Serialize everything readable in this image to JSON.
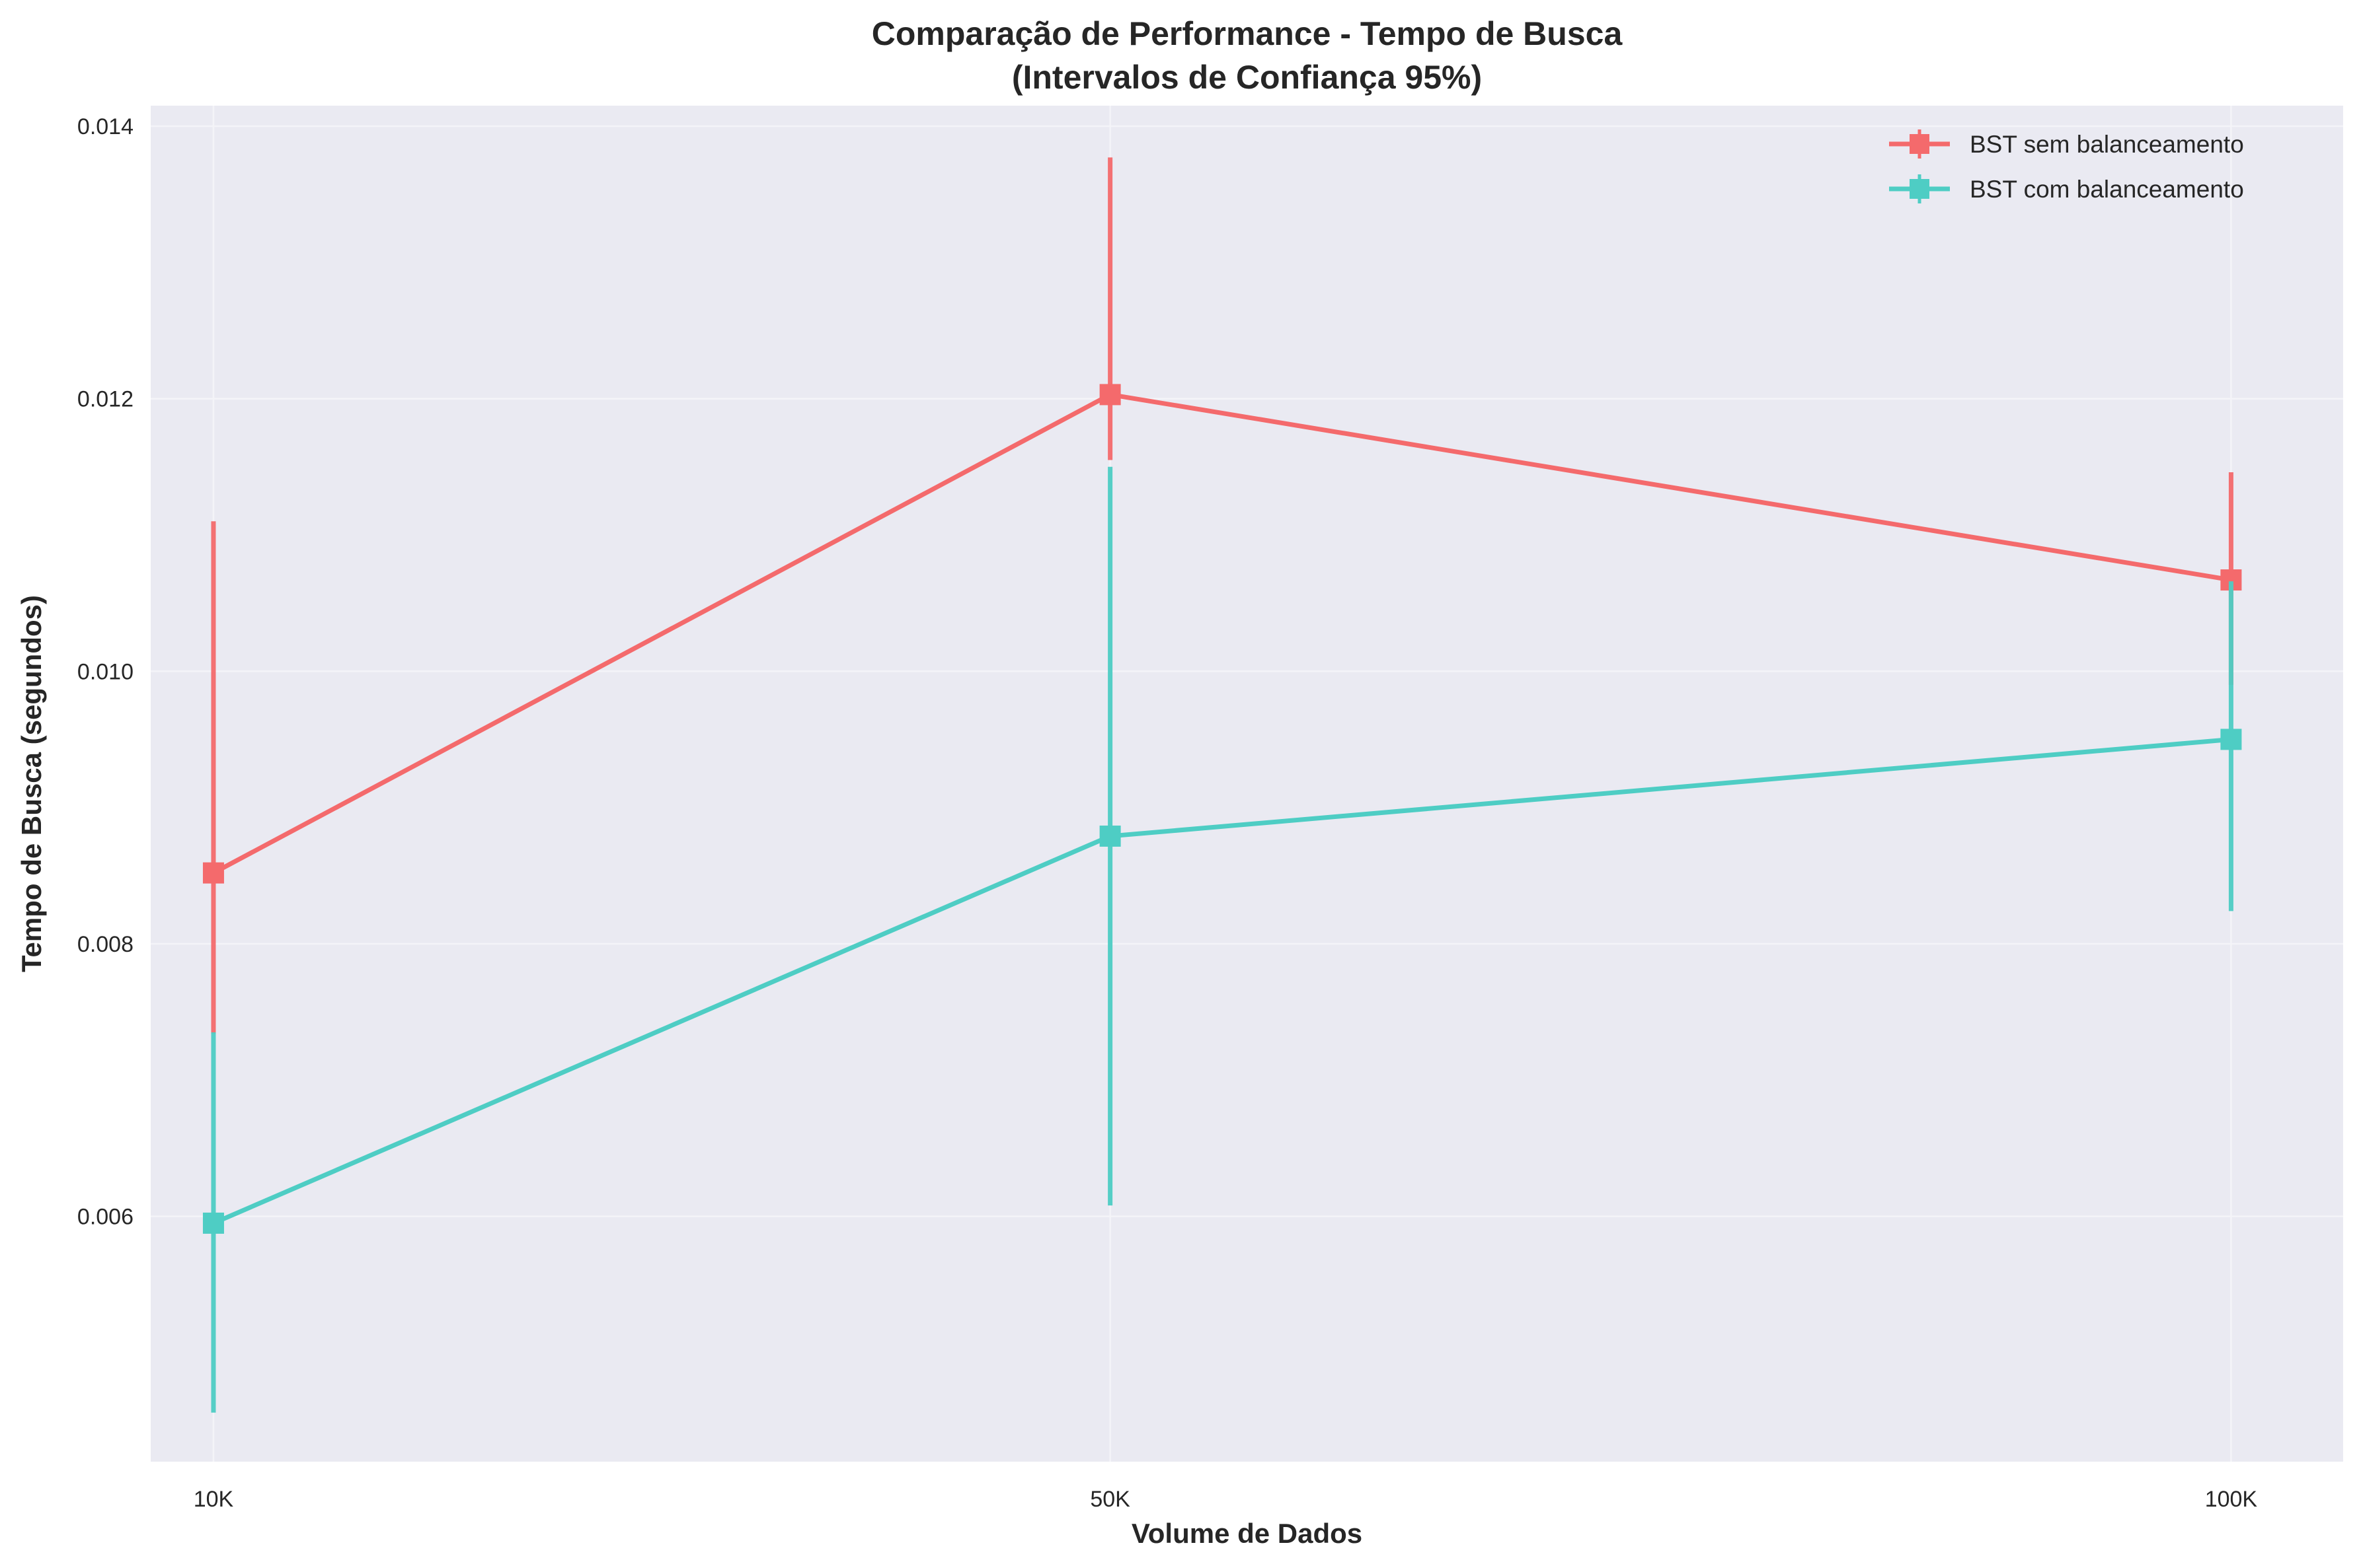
{
  "chart_data": {
    "type": "line",
    "title": "Comparação de Performance - Tempo de Busca",
    "subtitle": "(Intervalos de Confiança 95%)",
    "xlabel": "Volume de Dados",
    "ylabel": "Tempo de Busca (segundos)",
    "x": [
      10000,
      50000,
      100000
    ],
    "x_tick_labels": [
      "10K",
      "50K",
      "100K"
    ],
    "xlim": [
      7200,
      105000
    ],
    "ylim": [
      0.0042,
      0.01415
    ],
    "y_ticks": [
      0.006,
      0.008,
      0.01,
      0.012,
      0.014
    ],
    "y_tick_labels": [
      "0.006",
      "0.008",
      "0.010",
      "0.012",
      "0.014"
    ],
    "grid": true,
    "legend_position": "top-right",
    "series": [
      {
        "name": "BST sem balanceamento",
        "color": "#f46a6c",
        "marker": "square",
        "values": [
          0.00852,
          0.01203,
          0.01067
        ],
        "ci_low": [
          0.00734,
          0.01155,
          0.0099
        ],
        "ci_high": [
          0.0111,
          0.01377,
          0.01146
        ]
      },
      {
        "name": "BST com balanceamento",
        "color": "#4ecdc4",
        "marker": "square",
        "values": [
          0.00595,
          0.00879,
          0.0095
        ],
        "ci_low": [
          0.00456,
          0.00608,
          0.00824
        ],
        "ci_high": [
          0.00735,
          0.0115,
          0.01066
        ]
      }
    ]
  }
}
